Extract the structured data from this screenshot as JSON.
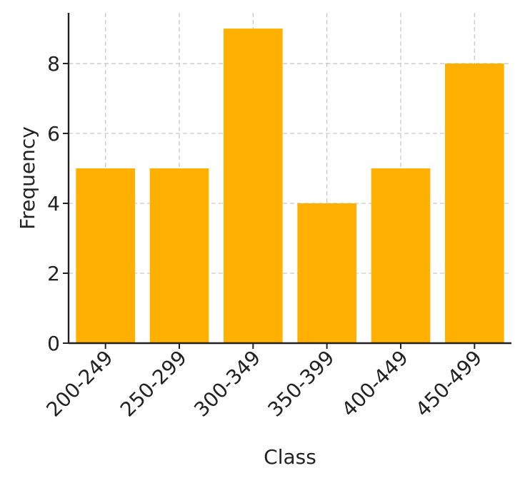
{
  "chart_data": {
    "type": "bar",
    "categories": [
      "200-249",
      "250-299",
      "300-349",
      "350-399",
      "400-449",
      "450-499"
    ],
    "values": [
      5,
      5,
      9,
      4,
      5,
      8
    ],
    "title": "",
    "xlabel": "Class",
    "ylabel": "Frequency",
    "ylim": [
      0,
      9.45
    ],
    "yticks": [
      0,
      2,
      4,
      6,
      8
    ],
    "bar_color": "#FFB000",
    "grid": true,
    "legend": "none"
  }
}
